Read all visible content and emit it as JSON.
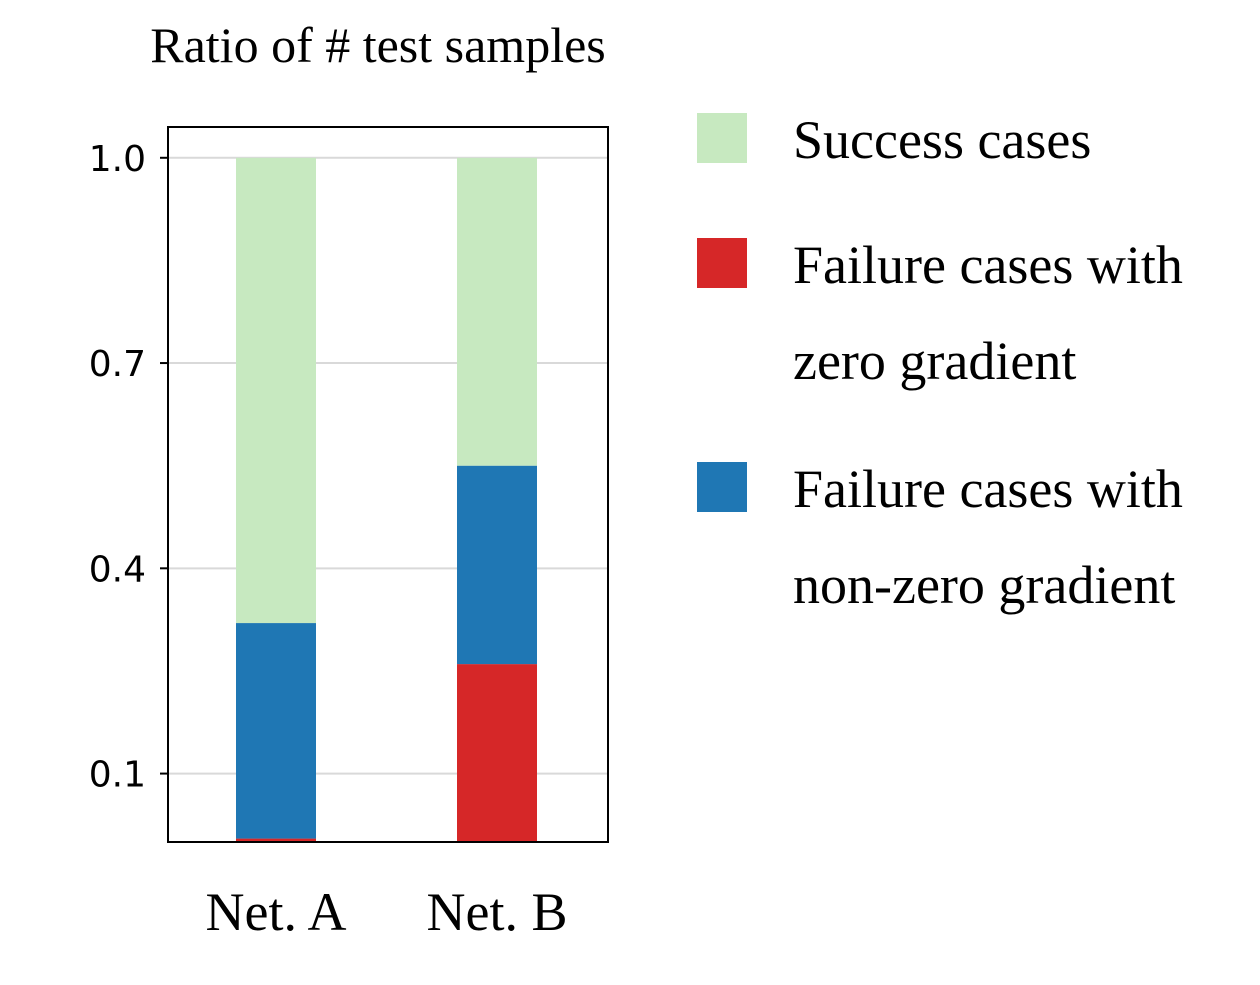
{
  "chart_data": {
    "type": "bar",
    "stacked": true,
    "title": "Ratio of # test samples",
    "categories": [
      "Net. A",
      "Net. B"
    ],
    "series": [
      {
        "name": "Failure cases with zero gradient",
        "legend_lines": [
          "Failure cases with",
          "zero gradient"
        ],
        "color": "#d62728",
        "values": [
          0.005,
          0.26
        ]
      },
      {
        "name": "Failure cases with non-zero gradient",
        "legend_lines": [
          "Failure cases with",
          "non-zero gradient"
        ],
        "color": "#1f77b4",
        "values": [
          0.315,
          0.29
        ]
      },
      {
        "name": "Success cases",
        "legend_lines": [
          "Success cases"
        ],
        "color": "#c7e9c0",
        "values": [
          0.68,
          0.45
        ]
      }
    ],
    "legend_order": [
      2,
      0,
      1
    ],
    "yticks": [
      "0.1",
      "0.4",
      "0.7",
      "1.0"
    ],
    "yvalues": [
      0.1,
      0.4,
      0.7,
      1.0
    ],
    "ylim": [
      0.0,
      1.045
    ],
    "grid": true,
    "legend_position": "right"
  }
}
